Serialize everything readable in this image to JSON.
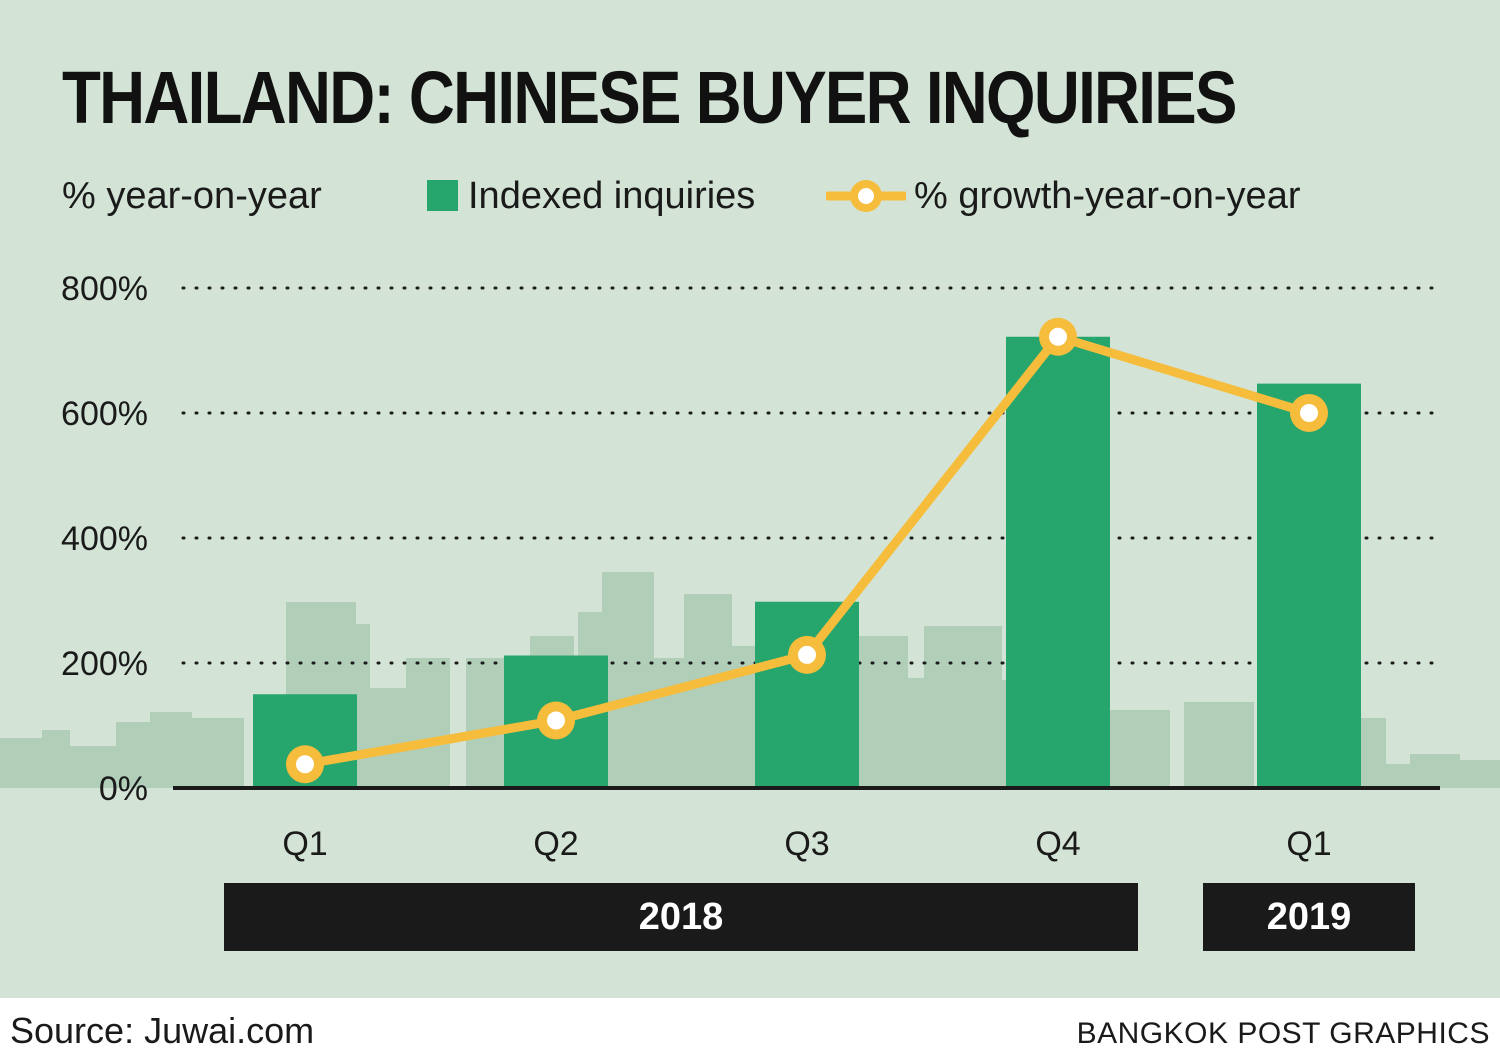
{
  "header": {
    "title": "THAILAND: CHINESE BUYER INQUIRIES",
    "unit_label": "% year-on-year"
  },
  "legend": {
    "bar_label": "Indexed inquiries",
    "line_label": "% growth-year-on-year"
  },
  "colors": {
    "background": "#d3e4d6",
    "bar": "#26a56c",
    "line": "#f6bd3c",
    "skyline": "#b1ceb9",
    "text": "#1a1a1a"
  },
  "chart_data": {
    "type": "bar",
    "categories": [
      "Q1",
      "Q2",
      "Q3",
      "Q4",
      "Q1"
    ],
    "year_groups": [
      {
        "label": "2018",
        "categories": [
          "Q1",
          "Q2",
          "Q3",
          "Q4"
        ]
      },
      {
        "label": "2019",
        "categories": [
          "Q1"
        ]
      }
    ],
    "series": [
      {
        "name": "Indexed inquiries",
        "type": "bar",
        "values": [
          150,
          212,
          298,
          722,
          647
        ]
      },
      {
        "name": "% growth-year-on-year",
        "type": "line",
        "values": [
          38,
          108,
          213,
          722,
          600
        ]
      }
    ],
    "ylim": [
      0,
      800
    ],
    "yticks": [
      "0%",
      "200%",
      "400%",
      "600%",
      "800%"
    ],
    "ytick_values": [
      0,
      200,
      400,
      600,
      800
    ],
    "grid": "dotted horizontal",
    "legend_position": "top"
  },
  "footer": {
    "source": "Source: Juwai.com",
    "credit": "BANGKOK POST GRAPHICS"
  }
}
